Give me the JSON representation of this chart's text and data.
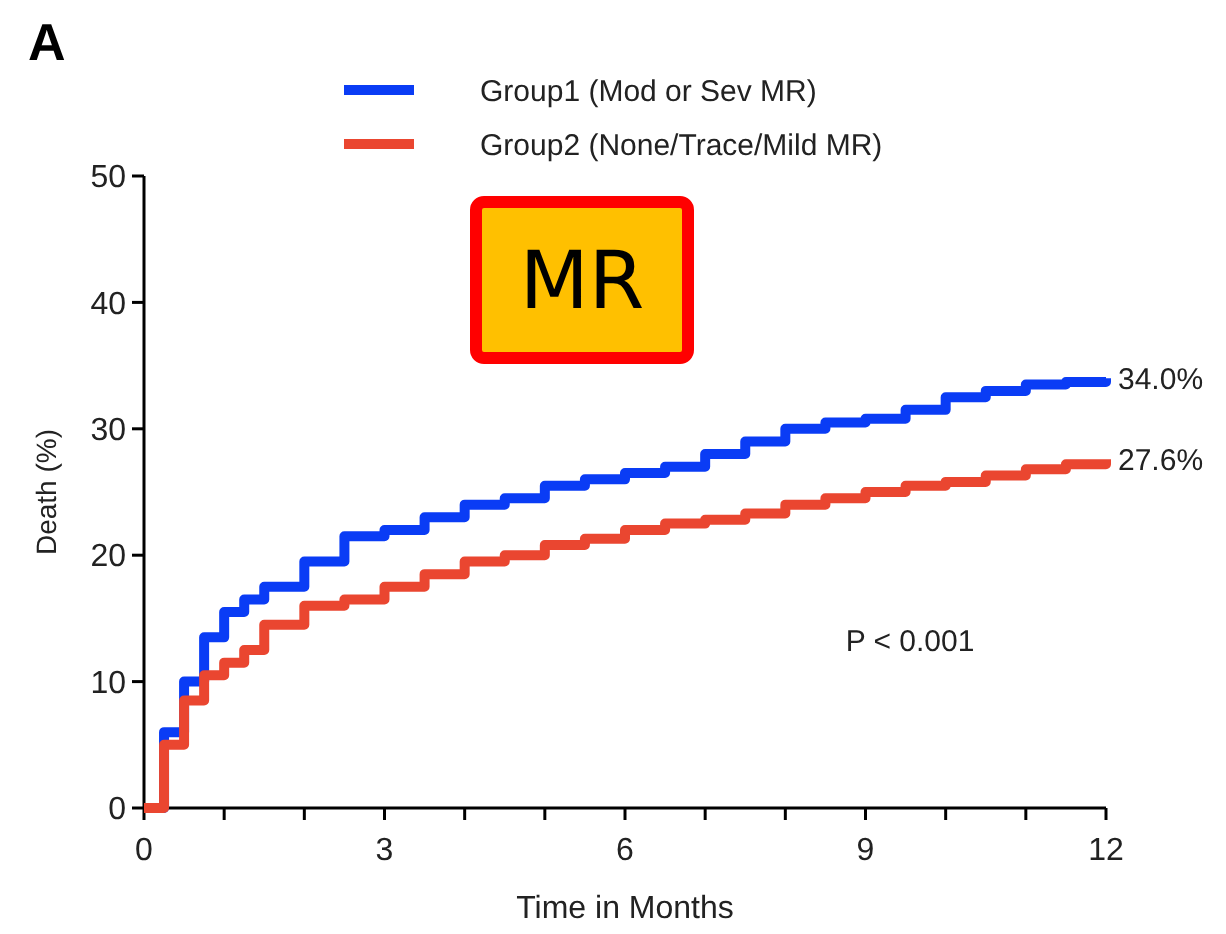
{
  "chart_data": {
    "type": "step",
    "title": "A",
    "xlabel": "Time in Months",
    "ylabel": "Death (%)",
    "x": [
      0,
      0.25,
      0.5,
      0.75,
      1,
      1.25,
      1.5,
      2,
      2.5,
      3,
      3.5,
      4,
      4.5,
      5,
      5.5,
      6,
      6.5,
      7,
      7.5,
      8,
      8.5,
      9,
      9.5,
      10,
      10.5,
      11,
      11.5,
      12
    ],
    "series": [
      {
        "name": "Group1 (Mod or Sev MR)",
        "color": "#0a3cf5",
        "values": [
          0,
          6,
          10,
          13.5,
          15.5,
          16.5,
          17.5,
          19.5,
          21.5,
          22,
          23,
          24,
          24.5,
          25.5,
          26,
          26.5,
          27,
          28,
          29,
          30,
          30.5,
          30.8,
          31.5,
          32.5,
          33,
          33.5,
          33.7,
          34.0
        ],
        "value_labels": [
          null,
          null,
          null,
          null,
          null,
          null,
          null,
          null,
          null,
          null,
          null,
          null,
          null,
          null,
          null,
          null,
          null,
          null,
          null,
          null,
          null,
          null,
          null,
          null,
          null,
          null,
          null,
          "34.0%"
        ]
      },
      {
        "name": "Group2 (None/Trace/Mild MR)",
        "color": "#ea4630",
        "values": [
          0,
          5,
          8.5,
          10.5,
          11.5,
          12.5,
          14.5,
          16,
          16.5,
          17.5,
          18.5,
          19.5,
          20,
          20.8,
          21.3,
          22,
          22.5,
          22.8,
          23.3,
          24,
          24.5,
          25,
          25.5,
          25.8,
          26.3,
          26.8,
          27.2,
          27.6
        ],
        "value_labels": [
          null,
          null,
          null,
          null,
          null,
          null,
          null,
          null,
          null,
          null,
          null,
          null,
          null,
          null,
          null,
          null,
          null,
          null,
          null,
          null,
          null,
          null,
          null,
          null,
          null,
          null,
          null,
          "27.6%"
        ]
      }
    ],
    "xlim": [
      0,
      12
    ],
    "xticks": [
      0,
      {
        "value": 1,
        "label": null
      },
      {
        "value": 2,
        "label": null
      },
      3,
      {
        "value": 4,
        "label": null
      },
      {
        "value": 5,
        "label": null
      },
      6,
      {
        "value": 7,
        "label": null
      },
      {
        "value": 8,
        "label": null
      },
      9,
      {
        "value": 10,
        "label": null
      },
      {
        "value": 11,
        "label": null
      },
      12
    ],
    "ylim": [
      0,
      50
    ],
    "yticks": [
      0,
      10,
      20,
      30,
      40,
      50
    ],
    "annotations": [
      "MR",
      "P < 0.001"
    ],
    "legend": "top",
    "grid": false,
    "marker": "none",
    "line_style": "solid"
  }
}
